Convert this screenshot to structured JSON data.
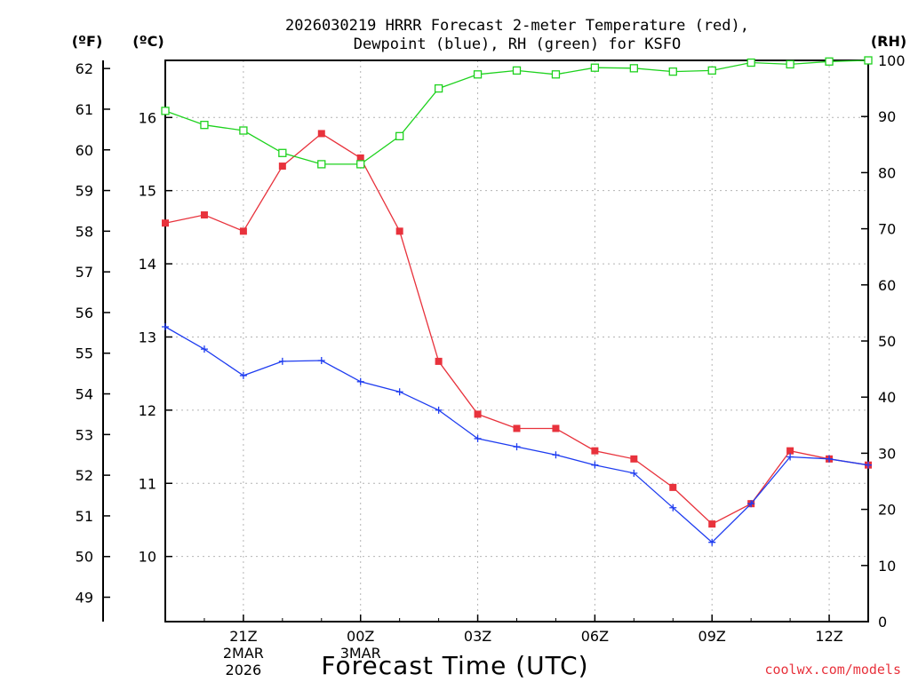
{
  "chart_data": {
    "type": "line",
    "title_line1": "2026030219 HRRR Forecast 2-meter Temperature (red),",
    "title_line2": "Dewpoint (blue), RH (green) for KSFO",
    "xlabel": "Forecast Time (UTC)",
    "credit": "coolwx.com/models",
    "units": {
      "fahrenheit": "(ºF)",
      "celsius": "(ºC)",
      "rh": "(RH)"
    },
    "x_hours": [
      19,
      20,
      21,
      22,
      23,
      24,
      25,
      26,
      27,
      28,
      29,
      30,
      31,
      32,
      33,
      34,
      35,
      36,
      37
    ],
    "xlim": [
      19,
      37
    ],
    "x_ticks": [
      {
        "hour": 21,
        "lines": [
          "21Z",
          "2MAR",
          "2026"
        ]
      },
      {
        "hour": 24,
        "lines": [
          "00Z",
          "3MAR"
        ]
      },
      {
        "hour": 27,
        "lines": [
          "03Z"
        ]
      },
      {
        "hour": 30,
        "lines": [
          "06Z"
        ]
      },
      {
        "hour": 33,
        "lines": [
          "09Z"
        ]
      },
      {
        "hour": 36,
        "lines": [
          "12Z"
        ]
      }
    ],
    "y_fahrenheit": {
      "range": [
        48.4,
        62.2
      ],
      "ticks": [
        "49",
        "50",
        "51",
        "52",
        "53",
        "54",
        "55",
        "56",
        "57",
        "58",
        "59",
        "60",
        "61",
        "62"
      ]
    },
    "y_celsius": {
      "range": [
        9.11,
        16.78
      ],
      "ticks": [
        "10",
        "11",
        "12",
        "13",
        "14",
        "15",
        "16"
      ]
    },
    "y_rh": {
      "range": [
        0,
        100
      ],
      "ticks": [
        "0",
        "10",
        "20",
        "30",
        "40",
        "50",
        "60",
        "70",
        "80",
        "90",
        "100"
      ]
    },
    "grid": true,
    "series": [
      {
        "key": "temperature",
        "color": "#e8323c",
        "axis": "fahrenheit",
        "marker": "filled-square",
        "values": [
          58.2,
          58.4,
          58.0,
          59.6,
          60.4,
          59.8,
          58.0,
          54.8,
          53.5,
          53.15,
          53.15,
          52.6,
          52.4,
          51.7,
          50.8,
          51.3,
          52.6,
          52.4,
          52.25
        ]
      },
      {
        "key": "dewpoint",
        "color": "#1e3cf0",
        "axis": "fahrenheit",
        "marker": "plus",
        "values": [
          55.65,
          55.1,
          54.45,
          54.8,
          54.82,
          54.3,
          54.05,
          53.6,
          52.9,
          52.7,
          52.5,
          52.25,
          52.05,
          51.2,
          50.35,
          51.3,
          52.45,
          52.4,
          52.25
        ]
      },
      {
        "key": "rh",
        "color": "#1ed21e",
        "axis": "rh",
        "marker": "open-square",
        "values": [
          91,
          88.5,
          87.5,
          83.5,
          81.5,
          81.5,
          86.5,
          95,
          97.5,
          98.2,
          97.5,
          98.7,
          98.6,
          98,
          98.2,
          99.6,
          99.3,
          99.8,
          100
        ]
      }
    ]
  }
}
